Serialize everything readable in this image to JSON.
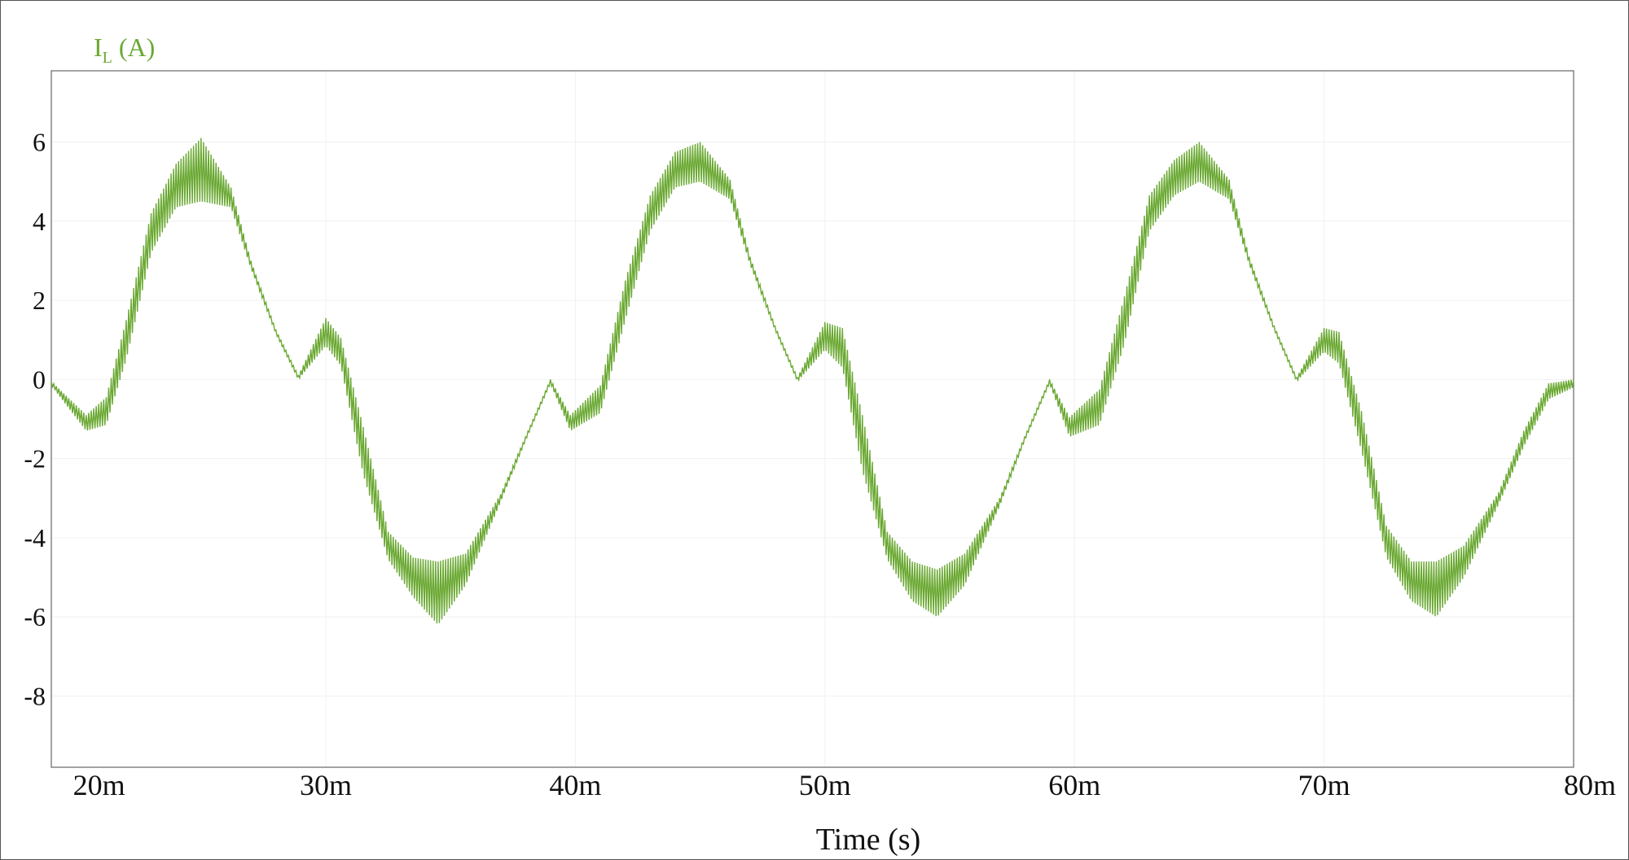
{
  "chart_data": {
    "type": "line",
    "title": "",
    "ylabel_main": "I",
    "ylabel_sub": "L",
    "ylabel_unit": " (A)",
    "xlabel": "Time (s)",
    "xlim": [
      0.019,
      0.08
    ],
    "ylim": [
      -9.8,
      7.8
    ],
    "x_ticks": [
      {
        "value": 0.02,
        "label": "20m"
      },
      {
        "value": 0.03,
        "label": "30m"
      },
      {
        "value": 0.04,
        "label": "40m"
      },
      {
        "value": 0.05,
        "label": "50m"
      },
      {
        "value": 0.06,
        "label": "60m"
      },
      {
        "value": 0.07,
        "label": "70m"
      },
      {
        "value": 0.08,
        "label": "80m"
      }
    ],
    "y_ticks": [
      {
        "value": 6,
        "label": "6"
      },
      {
        "value": 4,
        "label": "4"
      },
      {
        "value": 2,
        "label": "2"
      },
      {
        "value": 0,
        "label": "0"
      },
      {
        "value": -2,
        "label": "-2"
      },
      {
        "value": -4,
        "label": "-4"
      },
      {
        "value": -6,
        "label": "-6"
      },
      {
        "value": -8,
        "label": "-8"
      }
    ],
    "grid": true,
    "series": [
      {
        "color": "#6aa832",
        "envelope": {
          "t": [
            0.019,
            0.0204,
            0.0212,
            0.022,
            0.023,
            0.024,
            0.025,
            0.0262,
            0.027,
            0.028,
            0.0289,
            0.03,
            0.0306,
            0.0315,
            0.0325,
            0.0335,
            0.0345,
            0.0356,
            0.037,
            0.038,
            0.039,
            0.0398,
            0.041,
            0.042,
            0.043,
            0.044,
            0.045,
            0.0462,
            0.047,
            0.048,
            0.0489,
            0.05,
            0.0507,
            0.0515,
            0.0525,
            0.0535,
            0.0545,
            0.0556,
            0.057,
            0.058,
            0.059,
            0.0598,
            0.061,
            0.062,
            0.063,
            0.064,
            0.065,
            0.0662,
            0.067,
            0.068,
            0.0689,
            0.07,
            0.0706,
            0.0715,
            0.0725,
            0.0735,
            0.0745,
            0.0756,
            0.077,
            0.078,
            0.079,
            0.08
          ],
          "mean": [
            -0.1,
            -1.1,
            -0.8,
            1.0,
            3.7,
            4.9,
            5.3,
            4.6,
            2.9,
            1.2,
            0.05,
            1.2,
            0.7,
            -1.8,
            -4.2,
            -5.0,
            -5.4,
            -4.8,
            -3.0,
            -1.5,
            -0.05,
            -1.1,
            -0.5,
            2.0,
            4.2,
            5.3,
            5.5,
            4.8,
            3.0,
            1.3,
            0.0,
            1.1,
            0.8,
            -1.6,
            -4.2,
            -5.1,
            -5.4,
            -4.8,
            -3.1,
            -1.5,
            -0.05,
            -1.2,
            -0.7,
            1.5,
            4.2,
            5.1,
            5.5,
            4.8,
            3.0,
            1.3,
            0.0,
            1.0,
            0.8,
            -1.3,
            -4.1,
            -5.1,
            -5.3,
            -4.6,
            -3.0,
            -1.5,
            -0.3,
            -0.1
          ],
          "ripple": [
            0.05,
            0.2,
            0.35,
            0.5,
            0.5,
            0.55,
            0.8,
            0.25,
            0.1,
            0.05,
            0.05,
            0.35,
            0.35,
            0.6,
            0.35,
            0.5,
            0.8,
            0.4,
            0.1,
            0.05,
            0.05,
            0.2,
            0.35,
            0.5,
            0.45,
            0.45,
            0.5,
            0.25,
            0.1,
            0.05,
            0.05,
            0.35,
            0.5,
            0.7,
            0.35,
            0.5,
            0.6,
            0.4,
            0.1,
            0.05,
            0.05,
            0.25,
            0.45,
            0.6,
            0.45,
            0.45,
            0.5,
            0.25,
            0.1,
            0.05,
            0.05,
            0.3,
            0.4,
            0.5,
            0.4,
            0.5,
            0.7,
            0.4,
            0.15,
            0.2,
            0.2,
            0.1
          ]
        }
      }
    ]
  }
}
